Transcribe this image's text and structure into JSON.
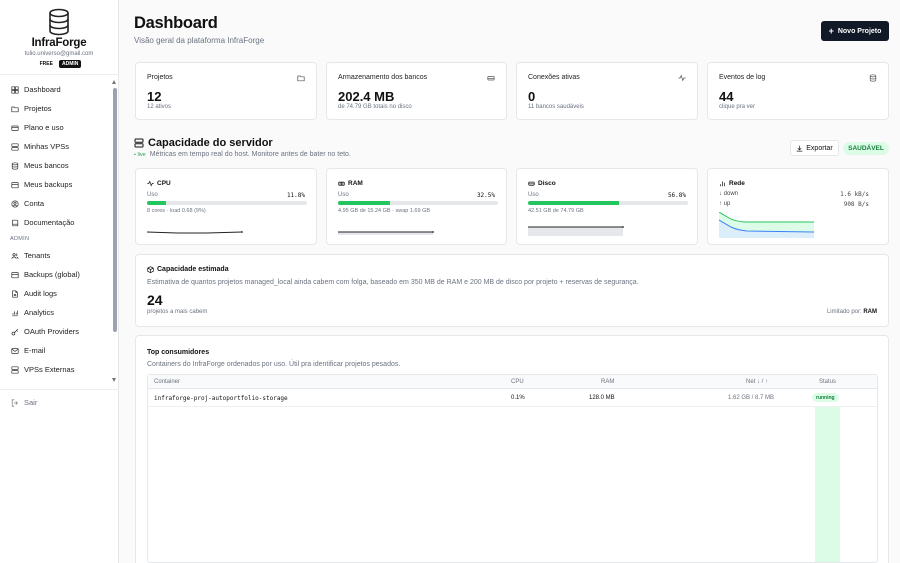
{
  "brand": {
    "name": "InfraForge",
    "email": "tulio.universo@gmail.com",
    "badge_free": "FREE",
    "badge_admin": "ADMIN"
  },
  "nav": {
    "items": [
      {
        "label": "Dashboard",
        "icon": "dashboard-icon"
      },
      {
        "label": "Projetos",
        "icon": "folder-icon"
      },
      {
        "label": "Plano e uso",
        "icon": "card-icon"
      },
      {
        "label": "Minhas VPSs",
        "icon": "server-icon"
      },
      {
        "label": "Meus bancos",
        "icon": "database-icon"
      },
      {
        "label": "Meus backups",
        "icon": "backup-icon"
      },
      {
        "label": "Conta",
        "icon": "account-icon"
      },
      {
        "label": "Documentação",
        "icon": "book-icon"
      }
    ],
    "admin_label": "ADMIN",
    "admin_items": [
      {
        "label": "Tenants",
        "icon": "users-icon"
      },
      {
        "label": "Backups (global)",
        "icon": "backup-icon"
      },
      {
        "label": "Audit logs",
        "icon": "file-icon"
      },
      {
        "label": "Analytics",
        "icon": "chart-icon"
      },
      {
        "label": "OAuth Providers",
        "icon": "key-icon"
      },
      {
        "label": "E-mail",
        "icon": "mail-icon"
      },
      {
        "label": "VPSs Externas",
        "icon": "server-icon"
      }
    ],
    "logout": "Sair"
  },
  "header": {
    "title": "Dashboard",
    "subtitle": "Visão geral da plataforma InfraForge",
    "new_project": "Novo Projeto"
  },
  "stats": [
    {
      "label": "Projetos",
      "value": "12",
      "hint": "12 ativos",
      "icon": "folder-icon"
    },
    {
      "label": "Armazenamento dos bancos",
      "value": "202.4 MB",
      "hint": "de 74.79 GB totais no disco",
      "icon": "drive-icon"
    },
    {
      "label": "Conexões ativas",
      "value": "0",
      "hint": "11 bancos saudáveis",
      "icon": "activity-icon"
    },
    {
      "label": "Eventos de log",
      "value": "44",
      "hint": "clique pra ver",
      "icon": "database-icon"
    }
  ],
  "server": {
    "title": "Capacidade do servidor",
    "live": "• live",
    "subtitle": "Métricas em tempo real do host. Monitore antes de bater no teto.",
    "export": "Exportar",
    "status": "SAUDÁVEL",
    "usage_label": "Uso",
    "cpu": {
      "title": "CPU",
      "percent": "11.8%",
      "fill": 11.8,
      "detail": "8 cores · load 0.68 (9%)"
    },
    "ram": {
      "title": "RAM",
      "percent": "32.5%",
      "fill": 32.5,
      "detail": "4.95 GB de 15.24 GB · swap 1.69 GB"
    },
    "disk": {
      "title": "Disco",
      "percent": "56.8%",
      "fill": 56.8,
      "detail": "42.51 GB de 74.79 GB"
    },
    "net": {
      "title": "Rede",
      "down_label": "↓ down",
      "down_value": "1.6 kB/s",
      "up_label": "↑ up",
      "up_value": "908 B/s"
    }
  },
  "capacity": {
    "title": "Capacidade estimada",
    "desc": "Estimativa de quantos projetos managed_local ainda cabem com folga, baseado em 350 MB de RAM e 200 MB de disco por projeto + reservas de segurança.",
    "value": "24",
    "value_label": "projetos a mais cabem",
    "limit_label": "Limitado por:",
    "limit_value": "RAM"
  },
  "consumers": {
    "title": "Top consumidores",
    "desc": "Containers do InfraForge ordenados por uso. Útil pra identificar projetos pesados.",
    "headers": {
      "container": "Container",
      "cpu": "CPU",
      "ram": "RAM",
      "net": "Net ↓ / ↑",
      "status": "Status"
    },
    "rows": [
      {
        "container": "infraforge-proj-autoportfolio-storage",
        "cpu": "0.1%",
        "ram": "128.0 MB",
        "net": "1.62 GB / 8.7 MB",
        "status": "running"
      }
    ]
  }
}
